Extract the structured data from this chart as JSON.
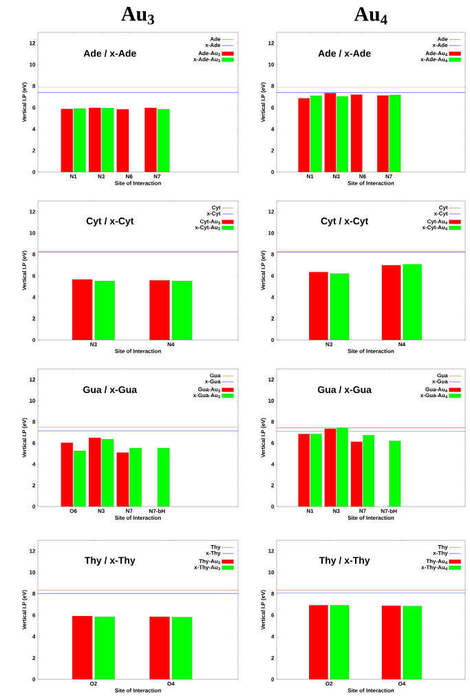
{
  "chart_data": [
    {
      "type": "bar",
      "title": "Au$_{3}$",
      "annotations": [
        "Ade / x-Ade"
      ],
      "xlabel": "Site of Interaction",
      "ylabel": "Vertical I.P (eV)",
      "categories": [
        "N1",
        "N3",
        "N6",
        "N7"
      ],
      "series": [
        {
          "name": "Ade-Au$_{3}$",
          "color": "#ff0000",
          "values": [
            5.87,
            5.98,
            5.84,
            5.98
          ]
        },
        {
          "name": "x-Ade-Au$_{3}$",
          "color": "#00ff00",
          "values": [
            5.9,
            5.95,
            null,
            5.84
          ]
        }
      ],
      "ref_lines": [
        {
          "axis": "y",
          "value": 7.88,
          "label": "Ade",
          "color": "#f08050"
        },
        {
          "axis": "y",
          "value": 7.4,
          "label": "x-Ade",
          "color": "#6060f0"
        }
      ],
      "ylim": [
        0,
        13
      ],
      "yticks": [
        0,
        2,
        4,
        6,
        8,
        10,
        12
      ],
      "legend": "top right"
    },
    {
      "type": "bar",
      "title": "Au$_{4}$",
      "annotations": [
        "Ade / x-Ade"
      ],
      "xlabel": "Site of Interaction",
      "ylabel": "Vertical I.P (eV)",
      "categories": [
        "N1",
        "N3",
        "N6",
        "N7"
      ],
      "series": [
        {
          "name": "Ade-Au$_{4}$",
          "color": "#ff0000",
          "values": [
            6.87,
            7.35,
            7.2,
            7.12
          ]
        },
        {
          "name": "x-Ade-Au$_{4}$",
          "color": "#00ff00",
          "values": [
            7.1,
            7.04,
            null,
            7.18
          ]
        }
      ],
      "ref_lines": [
        {
          "axis": "y",
          "value": 7.88,
          "label": "Ade",
          "color": "#f08050"
        },
        {
          "axis": "y",
          "value": 7.4,
          "label": "x-Ade",
          "color": "#6060f0"
        }
      ],
      "ylim": [
        0,
        13
      ],
      "yticks": [
        0,
        2,
        4,
        6,
        8,
        10,
        12
      ],
      "legend": "top right"
    },
    {
      "type": "bar",
      "annotations": [
        "Cyt / x-Cyt"
      ],
      "xlabel": "Site of Interaction",
      "ylabel": "Vertical I.P (eV)",
      "categories": [
        "N3",
        "N4"
      ],
      "series": [
        {
          "name": "Cyt-Au$_{3}$",
          "color": "#ff0000",
          "values": [
            5.67,
            5.59
          ]
        },
        {
          "name": "x-Cyt-Au$_{3}$",
          "color": "#00ff00",
          "values": [
            5.53,
            5.53
          ]
        }
      ],
      "ref_lines": [
        {
          "axis": "y",
          "value": 8.29,
          "label": "Cyt",
          "color": "#f08050"
        },
        {
          "axis": "y",
          "value": 8.23,
          "label": "x-Cyt",
          "color": "#6060f0"
        }
      ],
      "ylim": [
        0,
        13
      ],
      "yticks": [
        0,
        2,
        4,
        6,
        8,
        10,
        12
      ],
      "legend": "top right"
    },
    {
      "type": "bar",
      "annotations": [
        "Cyt / x-Cyt"
      ],
      "xlabel": "Site of Interaction",
      "ylabel": "Vertical I.P (eV)",
      "categories": [
        "N3",
        "N4"
      ],
      "series": [
        {
          "name": "Cyt-Au$_{4}$",
          "color": "#ff0000",
          "values": [
            6.36,
            7.0
          ]
        },
        {
          "name": "x-Cyt-Au$_{4}$",
          "color": "#00ff00",
          "values": [
            6.21,
            7.09
          ]
        }
      ],
      "ref_lines": [
        {
          "axis": "y",
          "value": 8.3,
          "label": "Cyt",
          "color": "#f08050"
        },
        {
          "axis": "y",
          "value": 8.22,
          "label": "x-Cyt",
          "color": "#6060f0"
        }
      ],
      "ylim": [
        0,
        13
      ],
      "yticks": [
        0,
        2,
        4,
        6,
        8,
        10,
        12
      ],
      "legend": "top right"
    },
    {
      "type": "bar",
      "annotations": [
        "Gua / x-Gua"
      ],
      "xlabel": "Site of Interaction",
      "ylabel": "Vertical I.P (eV)",
      "categories": [
        "O6",
        "N3",
        "N7",
        "N7-bH"
      ],
      "series": [
        {
          "name": "Gua-Au$_{3}$",
          "color": "#ff0000",
          "values": [
            6.03,
            6.5,
            5.1,
            null
          ]
        },
        {
          "name": "x-Gua-Au$_{3}$",
          "color": "#00ff00",
          "values": [
            5.27,
            6.37,
            5.52,
            5.52
          ]
        }
      ],
      "ref_lines": [
        {
          "axis": "y",
          "value": 7.49,
          "label": "Gua",
          "color": "#f08050"
        },
        {
          "axis": "y",
          "value": 7.15,
          "label": "x-Gua",
          "color": "#6060f0"
        }
      ],
      "ylim": [
        0,
        13
      ],
      "yticks": [
        0,
        2,
        4,
        6,
        8,
        10,
        12
      ],
      "legend": "top right"
    },
    {
      "type": "bar",
      "annotations": [
        "Gua / x-Gua"
      ],
      "xlabel": "Site of Interaction",
      "ylabel": "Vertical I.P (eV)",
      "categories": [
        "N1",
        "N3",
        "N7",
        "N7-bH"
      ],
      "series": [
        {
          "name": "Gua-Au$_{4}$",
          "color": "#ff0000",
          "values": [
            6.85,
            7.36,
            6.12,
            null
          ]
        },
        {
          "name": "x-Gua-Au$_{4}$",
          "color": "#00ff00",
          "values": [
            6.85,
            7.42,
            6.74,
            6.21
          ]
        }
      ],
      "ref_lines": [
        {
          "axis": "y",
          "value": 7.44,
          "label": "Gua",
          "color": "#f08050"
        },
        {
          "axis": "y",
          "value": 7.1,
          "label": "x-Gua",
          "color": "#6060f0"
        }
      ],
      "ylim": [
        0,
        13
      ],
      "yticks": [
        0,
        2,
        4,
        6,
        8,
        10,
        12
      ],
      "legend": "top right"
    },
    {
      "type": "bar",
      "annotations": [
        "Thy / x-Thy"
      ],
      "xlabel": "Site of Interaction",
      "ylabel": "Vertical I.P (eV)",
      "categories": [
        "O2",
        "O4"
      ],
      "series": [
        {
          "name": "Thy-Au$_{3}$",
          "color": "#ff0000",
          "values": [
            5.92,
            5.86
          ]
        },
        {
          "name": "x-Thy-Au$_{3}$",
          "color": "#00ff00",
          "values": [
            5.86,
            5.83
          ]
        }
      ],
      "ref_lines": [
        {
          "axis": "y",
          "value": 8.33,
          "label": "Thy",
          "color": "#f08050"
        },
        {
          "axis": "y",
          "value": 8.02,
          "label": "x-Thy",
          "color": "#6060f0"
        }
      ],
      "ylim": [
        0,
        13
      ],
      "yticks": [
        0,
        2,
        4,
        6,
        8,
        10,
        12
      ],
      "legend": "top right"
    },
    {
      "type": "bar",
      "annotations": [
        "Thy / x-Thy"
      ],
      "xlabel": "Site of Interaction",
      "ylabel": "Vertical I.P (eV)",
      "categories": [
        "O2",
        "O4"
      ],
      "series": [
        {
          "name": "Thy-Au$_{4}$",
          "color": "#ff0000",
          "values": [
            6.94,
            6.89
          ]
        },
        {
          "name": "x-Thy-Au$_{4}$",
          "color": "#00ff00",
          "values": [
            6.94,
            6.86
          ]
        }
      ],
      "ref_lines": [
        {
          "axis": "y",
          "value": 8.34,
          "label": "Thy",
          "color": "#f08050"
        },
        {
          "axis": "y",
          "value": 8.06,
          "label": "x-Thy",
          "color": "#6060f0"
        }
      ],
      "ylim": [
        0,
        13
      ],
      "yticks": [
        0,
        2,
        4,
        6,
        8,
        10,
        12
      ],
      "legend": "top right"
    }
  ]
}
